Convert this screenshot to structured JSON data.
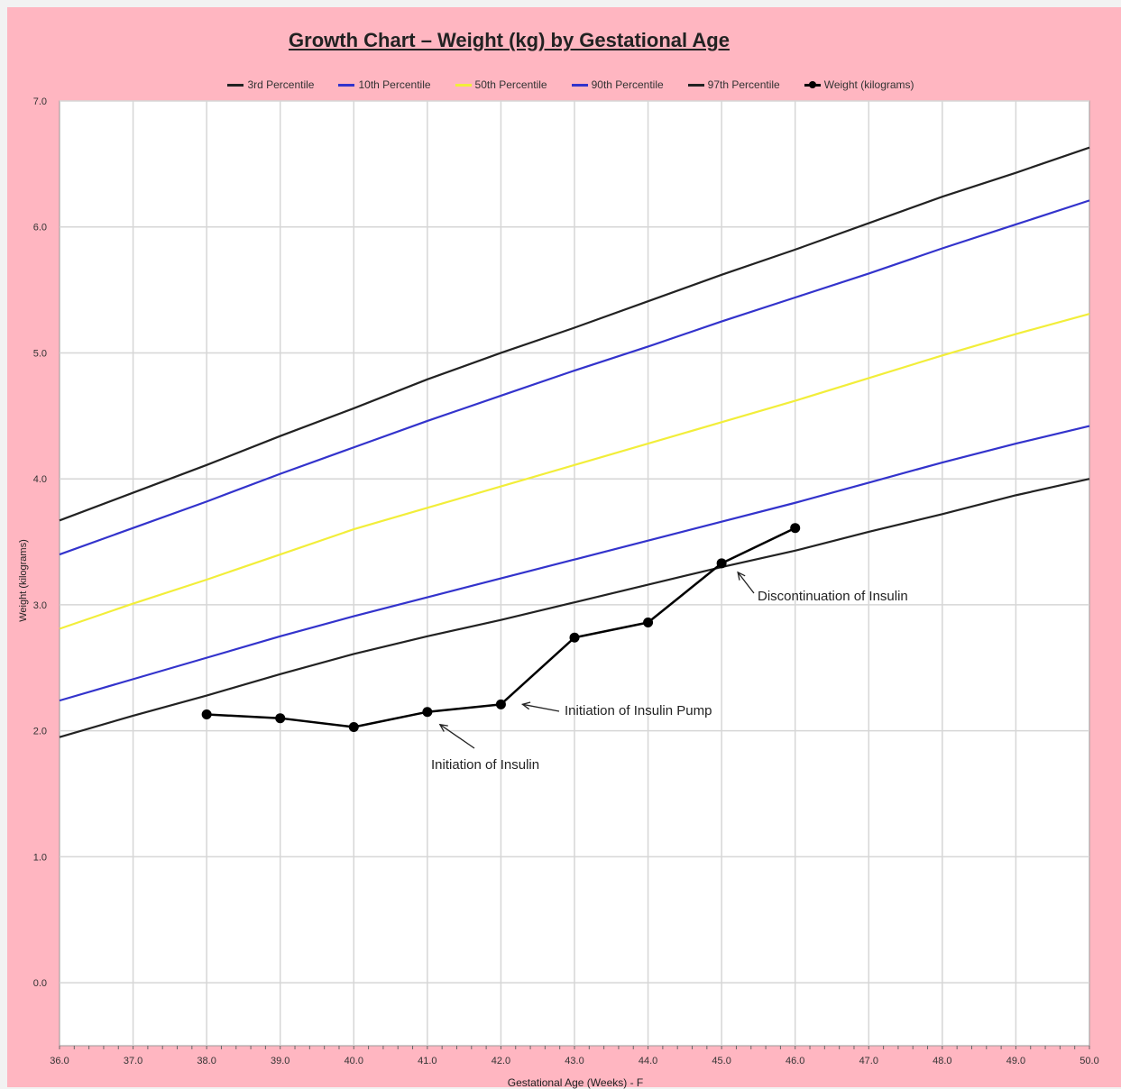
{
  "chart_data": {
    "type": "line",
    "title": "Growth Chart – Weight (kg) by Gestational Age",
    "xlabel": "Gestational Age (Weeks) - F",
    "ylabel": "Weight (kilograms)",
    "xlim": [
      36.0,
      50.0
    ],
    "ylim": [
      -0.5,
      7.0
    ],
    "xticks": [
      "36.0",
      "37.0",
      "38.0",
      "39.0",
      "40.0",
      "41.0",
      "42.0",
      "43.0",
      "44.0",
      "45.0",
      "46.0",
      "47.0",
      "48.0",
      "49.0",
      "50.0"
    ],
    "yticks": [
      "7.0",
      "6.0",
      "5.0",
      "4.0",
      "3.0",
      "2.0",
      "1.0",
      "0.0"
    ],
    "grid": true,
    "legend_position": "top",
    "series": [
      {
        "name": "3rd Percentile",
        "color": "#222222",
        "x": [
          36,
          37,
          38,
          39,
          40,
          41,
          42,
          43,
          44,
          45,
          46,
          47,
          48,
          49,
          50
        ],
        "values": [
          1.95,
          2.12,
          2.28,
          2.45,
          2.61,
          2.75,
          2.88,
          3.02,
          3.16,
          3.3,
          3.43,
          3.58,
          3.72,
          3.87,
          4.0
        ]
      },
      {
        "name": "10th Percentile",
        "color": "#3333cc",
        "x": [
          36,
          37,
          38,
          39,
          40,
          41,
          42,
          43,
          44,
          45,
          46,
          47,
          48,
          49,
          50
        ],
        "values": [
          2.24,
          2.41,
          2.58,
          2.75,
          2.91,
          3.06,
          3.21,
          3.36,
          3.51,
          3.66,
          3.81,
          3.97,
          4.13,
          4.28,
          4.42
        ]
      },
      {
        "name": "50th Percentile",
        "color": "#f2ee3a",
        "x": [
          36,
          37,
          38,
          39,
          40,
          41,
          42,
          43,
          44,
          45,
          46,
          47,
          48,
          49,
          50
        ],
        "values": [
          2.81,
          3.01,
          3.2,
          3.4,
          3.6,
          3.77,
          3.94,
          4.11,
          4.28,
          4.45,
          4.62,
          4.8,
          4.98,
          5.15,
          5.31
        ]
      },
      {
        "name": "90th Percentile",
        "color": "#3333cc",
        "x": [
          36,
          37,
          38,
          39,
          40,
          41,
          42,
          43,
          44,
          45,
          46,
          47,
          48,
          49,
          50
        ],
        "values": [
          3.4,
          3.61,
          3.82,
          4.04,
          4.25,
          4.46,
          4.66,
          4.86,
          5.05,
          5.25,
          5.44,
          5.63,
          5.83,
          6.02,
          6.21
        ]
      },
      {
        "name": "97th Percentile",
        "color": "#222222",
        "x": [
          36,
          37,
          38,
          39,
          40,
          41,
          42,
          43,
          44,
          45,
          46,
          47,
          48,
          49,
          50
        ],
        "values": [
          3.67,
          3.89,
          4.11,
          4.34,
          4.56,
          4.79,
          5.0,
          5.2,
          5.41,
          5.62,
          5.82,
          6.03,
          6.24,
          6.43,
          6.63
        ]
      },
      {
        "name": "Weight (kilograms)",
        "color": "#000000",
        "markers": true,
        "x": [
          38,
          39,
          40,
          41,
          42,
          43,
          44,
          45,
          46
        ],
        "values": [
          2.13,
          2.1,
          2.03,
          2.15,
          2.21,
          2.74,
          2.86,
          3.33,
          3.61
        ]
      }
    ],
    "annotations": [
      {
        "text": "Initiation of Insulin",
        "target_x": 41,
        "target_y": 2.15
      },
      {
        "text": "Initiation of Insulin Pump",
        "target_x": 42,
        "target_y": 2.21
      },
      {
        "text": "Discontinuation of Insulin",
        "target_x": 45,
        "target_y": 3.33
      }
    ]
  }
}
